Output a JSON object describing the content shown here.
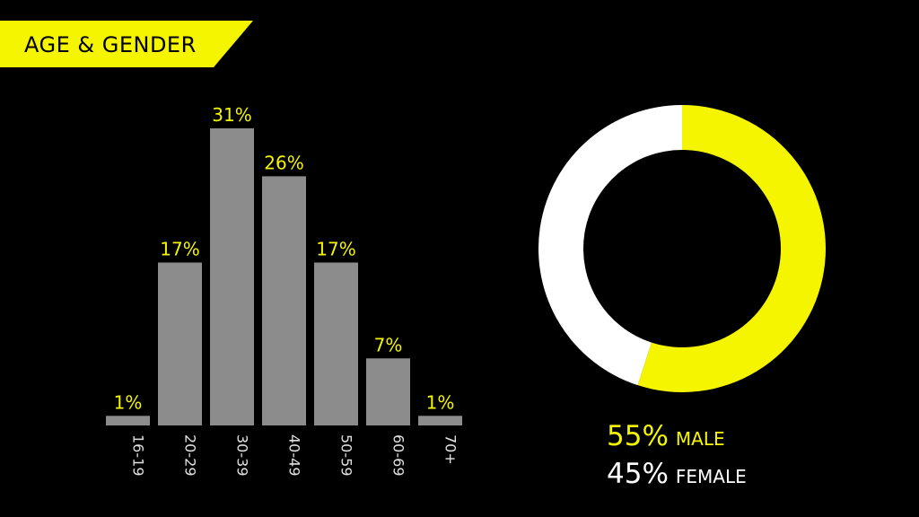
{
  "title": "AGE & GENDER",
  "colors": {
    "background": "#000000",
    "accent": "#f5f500",
    "bar": "#8c8c8c",
    "female": "#ffffff",
    "tick": "#e0e0e0"
  },
  "chart_data": [
    {
      "type": "bar",
      "categories": [
        "16-19",
        "20-29",
        "30-39",
        "40-49",
        "50-59",
        "60-69",
        "70+"
      ],
      "values": [
        1,
        17,
        31,
        26,
        17,
        7,
        1
      ],
      "value_labels": [
        "1%",
        "17%",
        "31%",
        "26%",
        "17%",
        "7%",
        "1%"
      ],
      "title": "",
      "xlabel": "",
      "ylabel": "",
      "ylim": [
        0,
        31
      ],
      "grid": false
    },
    {
      "type": "pie",
      "style": "donut",
      "labels": [
        "MALE",
        "FEMALE"
      ],
      "values": [
        55,
        45
      ],
      "value_labels": [
        "55%",
        "45%"
      ],
      "colors": [
        "#f5f500",
        "#ffffff"
      ]
    }
  ]
}
